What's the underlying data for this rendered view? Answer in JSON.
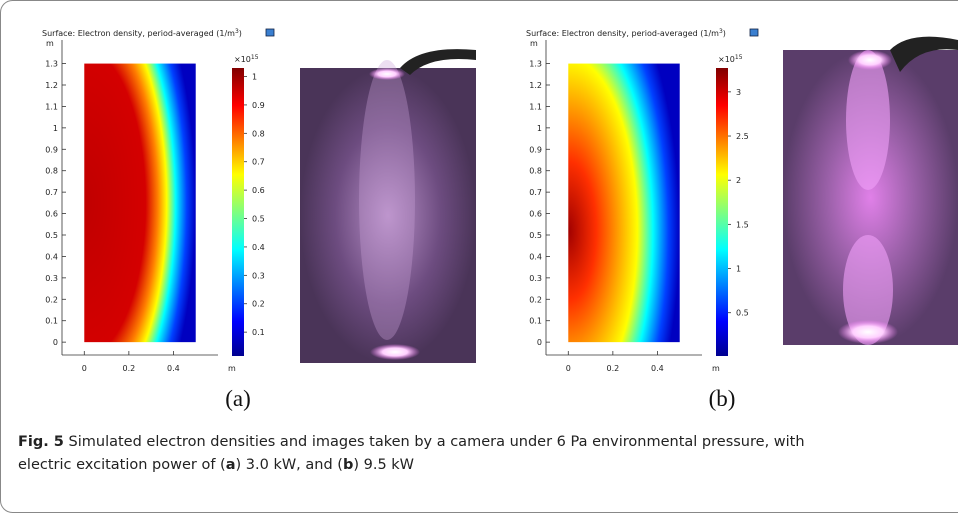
{
  "panels": [
    {
      "title": "Surface: Electron density, period-averaged (1/m",
      "title_sup": "3",
      "title_end": ")",
      "y_unit": "m",
      "x_unit": "m",
      "xlim": [
        -0.1,
        0.6
      ],
      "ylim": [
        -0.06,
        1.41
      ],
      "xticks": [
        0,
        0.2,
        0.4
      ],
      "yticks": [
        0,
        0.1,
        0.2,
        0.3,
        0.4,
        0.5,
        0.6,
        0.7,
        0.8,
        0.9,
        1,
        1.1,
        1.2,
        1.3
      ],
      "colorbar": {
        "exponent_base": "×10",
        "exponent": "15",
        "lim": [
          0.016,
          1.03
        ],
        "ticks": [
          0.1,
          0.2,
          0.3,
          0.4,
          0.5,
          0.6,
          0.7,
          0.8,
          0.9,
          1
        ]
      },
      "label": "(a)"
    },
    {
      "title": "Surface: Electron density, period-averaged (1/m",
      "title_sup": "3",
      "title_end": ")",
      "y_unit": "m",
      "x_unit": "m",
      "xlim": [
        -0.1,
        0.6
      ],
      "ylim": [
        -0.06,
        1.41
      ],
      "xticks": [
        0,
        0.2,
        0.4
      ],
      "yticks": [
        0,
        0.1,
        0.2,
        0.3,
        0.4,
        0.5,
        0.6,
        0.7,
        0.8,
        0.9,
        1,
        1.1,
        1.2,
        1.3
      ],
      "colorbar": {
        "exponent_base": "×10",
        "exponent": "15",
        "lim": [
          0.01,
          3.27
        ],
        "ticks": [
          0.5,
          1,
          1.5,
          2,
          2.5,
          3
        ]
      },
      "label": "(b)"
    }
  ],
  "caption": {
    "label": "Fig. 5",
    "line1": " Simulated electron densities and images taken by a camera under 6 Pa environmental pressure, with",
    "line2a": "electric excitation power of (",
    "a": "a",
    "line2b": ") 3.0 kW, and (",
    "b": "b",
    "line2c": ") 9.5 kW"
  }
}
